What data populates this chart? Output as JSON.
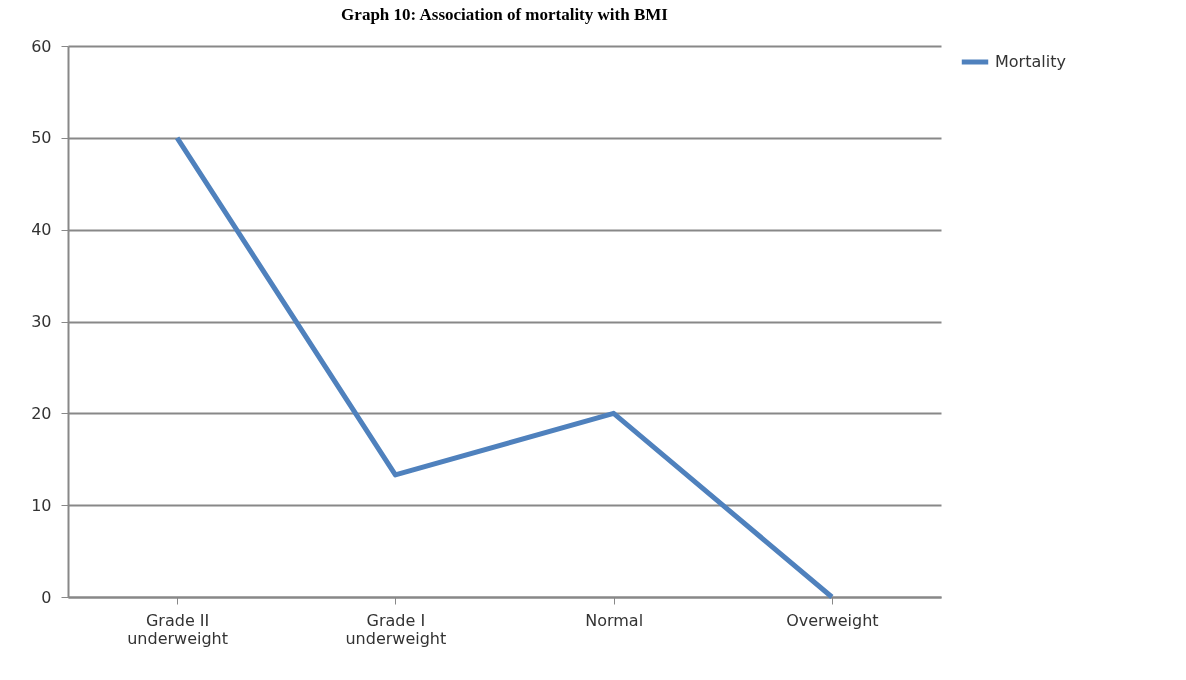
{
  "chart_data": {
    "type": "line",
    "title": "Graph 10: Association of mortality with BMI",
    "categories": [
      "Grade II underweight",
      "Grade I underweight",
      "Normal",
      "Overweight"
    ],
    "series": [
      {
        "name": "Mortality",
        "color": "#4f81bd",
        "values": [
          50,
          13.3,
          20,
          0
        ]
      }
    ],
    "ylim": [
      0,
      60
    ],
    "yticks": [
      0,
      10,
      20,
      30,
      40,
      50,
      60
    ],
    "grid": "y",
    "legend": "right",
    "marker": "none",
    "line_style": "solid"
  }
}
